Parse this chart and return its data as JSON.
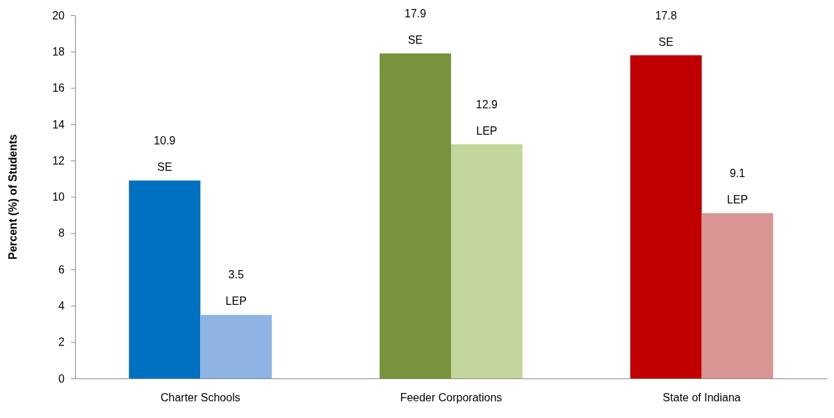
{
  "chart_data": {
    "type": "bar",
    "ylabel": "Percent (%) of Students",
    "categories": [
      "Charter Schools",
      "Feeder Corporations",
      "State of Indiana"
    ],
    "series": [
      {
        "name": "SE",
        "colors": [
          "#0070c0",
          "#77933c",
          "#c00000"
        ],
        "values": [
          10.9,
          17.9,
          17.8
        ]
      },
      {
        "name": "LEP",
        "colors": [
          "#8eb4e3",
          "#c3d69b",
          "#d99694"
        ],
        "values": [
          3.5,
          12.9,
          9.1
        ]
      }
    ],
    "ylim": [
      0,
      20
    ],
    "yticks": [
      0,
      2,
      4,
      6,
      8,
      10,
      12,
      14,
      16,
      18,
      20
    ],
    "grid": false,
    "data_labels": true,
    "legend": false
  }
}
